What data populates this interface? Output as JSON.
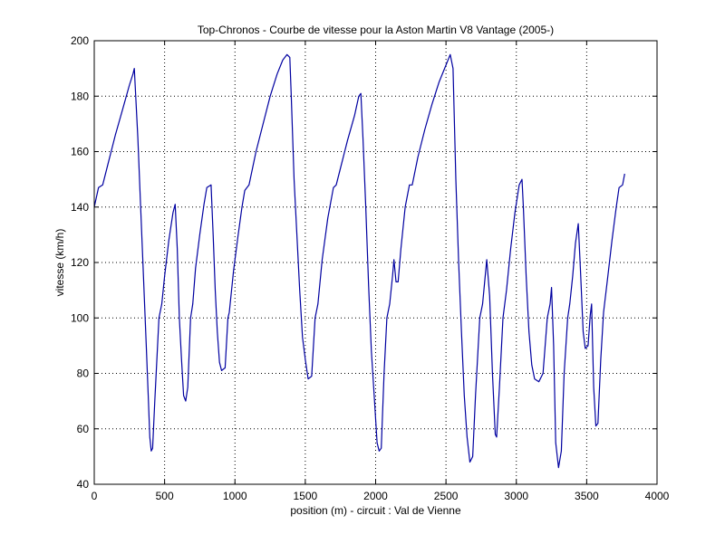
{
  "chart_data": {
    "type": "line",
    "title": "Top-Chronos - Courbe de vitesse pour la Aston Martin V8 Vantage (2005-)",
    "xlabel": "position (m) - circuit : Val de Vienne",
    "ylabel": "vitesse (km/h)",
    "xlim": [
      0,
      4000
    ],
    "ylim": [
      40,
      200
    ],
    "xticks": [
      0,
      500,
      1000,
      1500,
      2000,
      2500,
      3000,
      3500,
      4000
    ],
    "yticks": [
      40,
      60,
      80,
      100,
      120,
      140,
      160,
      180,
      200
    ],
    "grid": true,
    "line_color": "#0000a0",
    "series": [
      {
        "points": [
          [
            0,
            140
          ],
          [
            30,
            147
          ],
          [
            60,
            148
          ],
          [
            100,
            156
          ],
          [
            150,
            166
          ],
          [
            200,
            175
          ],
          [
            250,
            184
          ],
          [
            275,
            188
          ],
          [
            285,
            190
          ],
          [
            310,
            165
          ],
          [
            330,
            140
          ],
          [
            350,
            115
          ],
          [
            370,
            90
          ],
          [
            385,
            70
          ],
          [
            395,
            57
          ],
          [
            405,
            52
          ],
          [
            415,
            53
          ],
          [
            430,
            70
          ],
          [
            460,
            100
          ],
          [
            480,
            105
          ],
          [
            500,
            115
          ],
          [
            530,
            128
          ],
          [
            560,
            138
          ],
          [
            575,
            141
          ],
          [
            590,
            125
          ],
          [
            605,
            100
          ],
          [
            620,
            85
          ],
          [
            635,
            72
          ],
          [
            650,
            70
          ],
          [
            665,
            75
          ],
          [
            685,
            100
          ],
          [
            700,
            105
          ],
          [
            720,
            118
          ],
          [
            750,
            130
          ],
          [
            780,
            141
          ],
          [
            800,
            147
          ],
          [
            830,
            148
          ],
          [
            845,
            130
          ],
          [
            860,
            110
          ],
          [
            875,
            95
          ],
          [
            890,
            84
          ],
          [
            905,
            81
          ],
          [
            930,
            82
          ],
          [
            950,
            100
          ],
          [
            960,
            102
          ],
          [
            990,
            117
          ],
          [
            1020,
            129
          ],
          [
            1050,
            140
          ],
          [
            1070,
            146
          ],
          [
            1100,
            148
          ],
          [
            1150,
            160
          ],
          [
            1200,
            170
          ],
          [
            1250,
            180
          ],
          [
            1300,
            188
          ],
          [
            1340,
            193
          ],
          [
            1370,
            195
          ],
          [
            1390,
            194
          ],
          [
            1400,
            180
          ],
          [
            1420,
            150
          ],
          [
            1440,
            130
          ],
          [
            1460,
            110
          ],
          [
            1480,
            93
          ],
          [
            1500,
            85
          ],
          [
            1520,
            78
          ],
          [
            1545,
            79
          ],
          [
            1570,
            100
          ],
          [
            1590,
            105
          ],
          [
            1620,
            121
          ],
          [
            1660,
            136
          ],
          [
            1700,
            147
          ],
          [
            1720,
            148
          ],
          [
            1760,
            156
          ],
          [
            1800,
            164
          ],
          [
            1850,
            173
          ],
          [
            1880,
            180
          ],
          [
            1895,
            181
          ],
          [
            1910,
            165
          ],
          [
            1930,
            140
          ],
          [
            1950,
            112
          ],
          [
            1970,
            88
          ],
          [
            1990,
            72
          ],
          [
            2010,
            55
          ],
          [
            2025,
            52
          ],
          [
            2040,
            53
          ],
          [
            2060,
            80
          ],
          [
            2080,
            100
          ],
          [
            2100,
            105
          ],
          [
            2120,
            115
          ],
          [
            2130,
            121
          ],
          [
            2145,
            113
          ],
          [
            2160,
            113
          ],
          [
            2180,
            125
          ],
          [
            2210,
            140
          ],
          [
            2240,
            148
          ],
          [
            2260,
            148
          ],
          [
            2300,
            158
          ],
          [
            2350,
            168
          ],
          [
            2400,
            177
          ],
          [
            2450,
            185
          ],
          [
            2490,
            190
          ],
          [
            2530,
            195
          ],
          [
            2550,
            190
          ],
          [
            2570,
            150
          ],
          [
            2590,
            120
          ],
          [
            2610,
            95
          ],
          [
            2630,
            72
          ],
          [
            2650,
            57
          ],
          [
            2670,
            48
          ],
          [
            2690,
            50
          ],
          [
            2710,
            72
          ],
          [
            2740,
            100
          ],
          [
            2760,
            105
          ],
          [
            2790,
            121
          ],
          [
            2810,
            108
          ],
          [
            2830,
            80
          ],
          [
            2850,
            58
          ],
          [
            2860,
            57
          ],
          [
            2880,
            75
          ],
          [
            2905,
            100
          ],
          [
            2930,
            110
          ],
          [
            2960,
            125
          ],
          [
            2990,
            138
          ],
          [
            3020,
            148
          ],
          [
            3040,
            150
          ],
          [
            3050,
            140
          ],
          [
            3070,
            115
          ],
          [
            3090,
            95
          ],
          [
            3110,
            83
          ],
          [
            3130,
            78
          ],
          [
            3160,
            77
          ],
          [
            3190,
            80
          ],
          [
            3220,
            100
          ],
          [
            3240,
            105
          ],
          [
            3250,
            111
          ],
          [
            3265,
            90
          ],
          [
            3280,
            55
          ],
          [
            3300,
            46
          ],
          [
            3320,
            52
          ],
          [
            3340,
            80
          ],
          [
            3365,
            100
          ],
          [
            3380,
            105
          ],
          [
            3400,
            115
          ],
          [
            3420,
            127
          ],
          [
            3440,
            134
          ],
          [
            3455,
            118
          ],
          [
            3475,
            95
          ],
          [
            3490,
            89
          ],
          [
            3510,
            90
          ],
          [
            3525,
            101
          ],
          [
            3535,
            105
          ],
          [
            3550,
            75
          ],
          [
            3565,
            61
          ],
          [
            3580,
            62
          ],
          [
            3600,
            85
          ],
          [
            3620,
            102
          ],
          [
            3650,
            115
          ],
          [
            3680,
            128
          ],
          [
            3710,
            140
          ],
          [
            3730,
            147
          ],
          [
            3755,
            148
          ],
          [
            3770,
            152
          ]
        ]
      }
    ]
  }
}
